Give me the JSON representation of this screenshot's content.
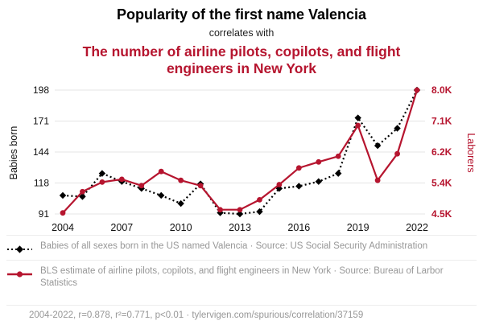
{
  "header": {
    "title": "Popularity of the first name Valencia",
    "subtitle": "correlates with",
    "correlated_title": "The number of airline pilots, copilots, and flight engineers in New York"
  },
  "axes": {
    "left_label": "Babies born",
    "right_label": "Laborers"
  },
  "legend": [
    {
      "label": "Babies of all sexes born in the US named Valencia · Source: US Social Security Administration"
    },
    {
      "label": "BLS estimate of airline pilots, copilots, and flight engineers in New York · Source: Bureau of Larbor Statistics"
    }
  ],
  "footer": {
    "text": "2004-2022, r=0.878, r²=0.771, p<0.01 · tylervigen.com/spurious/correlation/37159"
  },
  "colors": {
    "accent": "#b6152f",
    "line_black": "#000000",
    "grid": "#e4e4e4",
    "muted": "#979797"
  },
  "chart_data": {
    "type": "line",
    "title": "Popularity of the first name Valencia correlates with the number of airline pilots, copilots, and flight engineers in New York",
    "x": [
      2004,
      2005,
      2006,
      2007,
      2008,
      2009,
      2010,
      2011,
      2012,
      2013,
      2014,
      2015,
      2016,
      2017,
      2018,
      2019,
      2020,
      2021,
      2022
    ],
    "x_ticks": [
      2004,
      2007,
      2010,
      2013,
      2016,
      2019,
      2022
    ],
    "left_axis": {
      "label": "Babies born",
      "ticks": [
        "91",
        "118",
        "144",
        "171",
        "198"
      ],
      "range": [
        91,
        198
      ]
    },
    "right_axis": {
      "label": "Laborers",
      "ticks": [
        "4.5K",
        "5.4K",
        "6.2K",
        "7.1K",
        "8.0K"
      ],
      "range": [
        4500,
        8000
      ]
    },
    "grid": true,
    "legend_position": "bottom",
    "series": [
      {
        "name": "Babies of all sexes born in the US named Valencia",
        "axis": "left",
        "color": "#000000",
        "marker": "diamond",
        "line_style": "dotted",
        "values": [
          107,
          106,
          126,
          119,
          113,
          107,
          100,
          117,
          92,
          91,
          93,
          113,
          115,
          119,
          126,
          174,
          150,
          165,
          198
        ]
      },
      {
        "name": "BLS estimate of airline pilots, copilots, and flight engineers in New York",
        "axis": "right",
        "color": "#b6152f",
        "marker": "circle",
        "line_style": "solid",
        "values": [
          4530,
          5130,
          5400,
          5480,
          5300,
          5700,
          5450,
          5300,
          4620,
          4620,
          4900,
          5330,
          5800,
          5970,
          6130,
          7000,
          5450,
          6200,
          8000
        ]
      }
    ]
  }
}
